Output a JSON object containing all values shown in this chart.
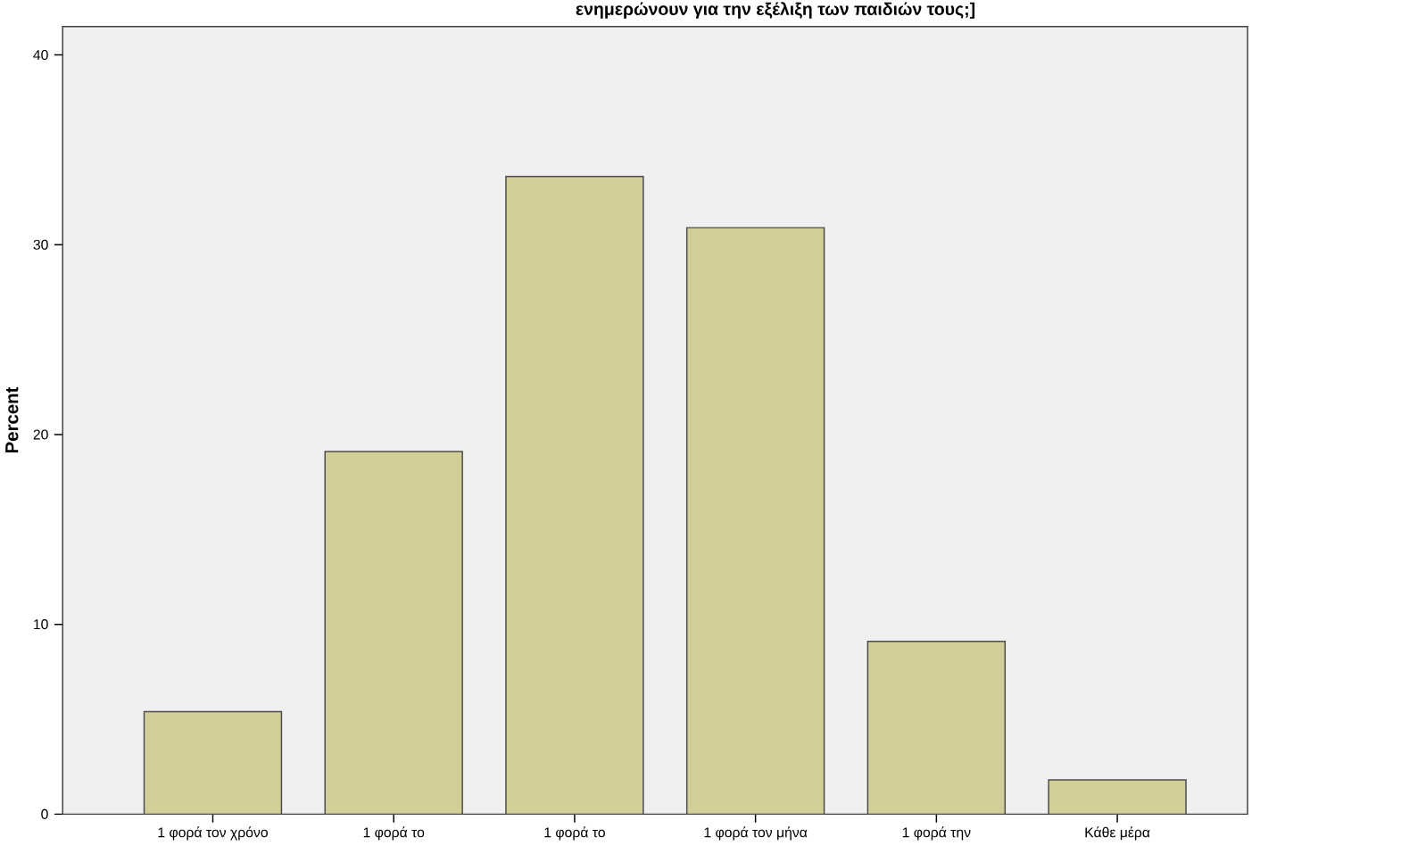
{
  "chart_data": {
    "type": "bar",
    "title": "ενημερώνουν για την εξέλιξη των παιδιών τους;]",
    "ylabel": "Percent",
    "categories": [
      "1 φορά τον χρόνο",
      "1 φορά το",
      "1 φορά το",
      "1 φορά τον μήνα",
      "1 φορά την",
      "Κάθε μέρα"
    ],
    "values": [
      5.4,
      19.1,
      33.6,
      30.9,
      9.1,
      1.8
    ],
    "color": "#d3ce97",
    "ylim": [
      0,
      41.5
    ],
    "yticks": [
      0,
      10,
      20,
      30,
      40
    ],
    "grid": false
  }
}
